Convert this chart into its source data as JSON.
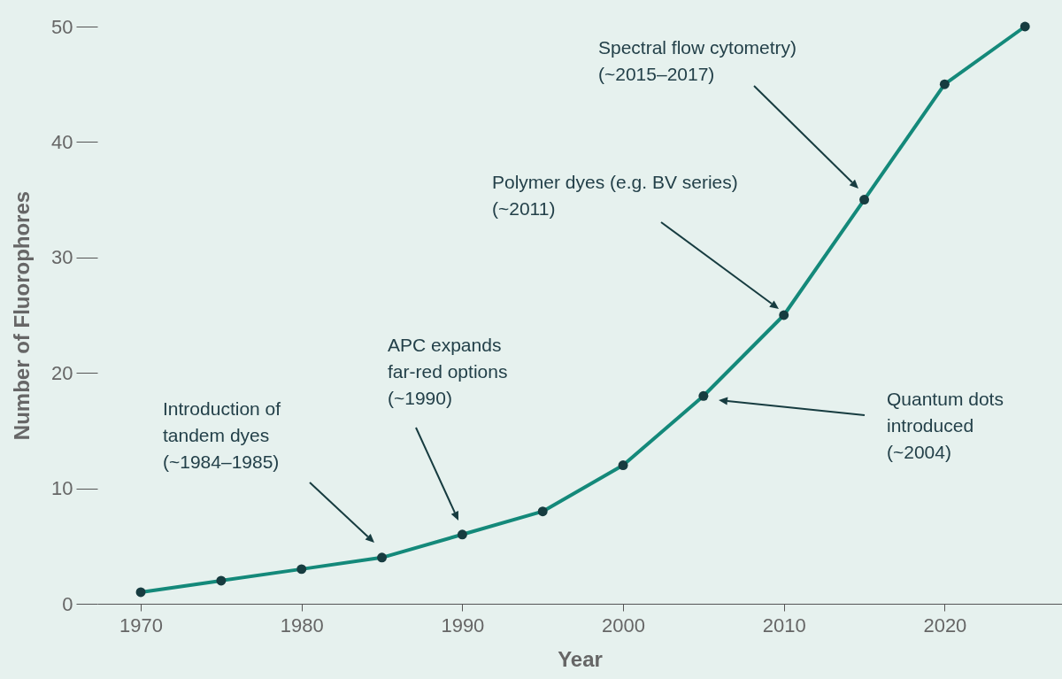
{
  "chart_data": {
    "type": "line",
    "xlabel": "Year",
    "ylabel": "Number of Fluorophores",
    "x": [
      1970,
      1975,
      1980,
      1985,
      1990,
      1995,
      2000,
      2005,
      2010,
      2015,
      2020,
      2025
    ],
    "series": [
      {
        "color": "#14897a",
        "values": [
          1,
          2,
          3,
          4,
          6,
          8,
          12,
          18,
          25,
          35,
          45,
          50
        ]
      }
    ],
    "xlim": [
      1967.3,
      2027.3
    ],
    "xticks": [
      {
        "value": 1970,
        "label": "1970"
      },
      {
        "value": 1980,
        "label": "1980"
      },
      {
        "value": 1990,
        "label": "1990"
      },
      {
        "value": 2000,
        "label": "2000"
      },
      {
        "value": 2010,
        "label": "2010"
      },
      {
        "value": 2020,
        "label": "2020"
      }
    ],
    "ylim": [
      0,
      50
    ],
    "yticks": [
      0,
      10,
      20,
      30,
      40,
      50
    ],
    "grid": false,
    "marker": "circle",
    "line_style": "solid",
    "annotations": [
      "Introduction of\ntandem dyes\n(~1984–1985)",
      "APC expands\nfar-red options\n(~1990)",
      "Quantum dots\nintroduced\n(~2004)",
      "Polymer dyes (e.g. BV series)\n(~2011)",
      "Spectral flow cytometry)\n(~2015–2017)"
    ]
  }
}
